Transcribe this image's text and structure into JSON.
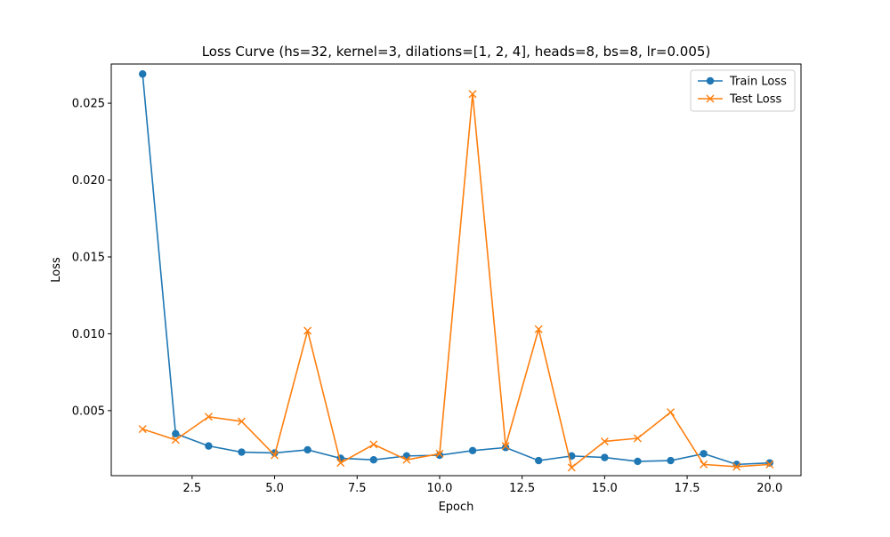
{
  "chart_data": {
    "type": "line",
    "title": "Loss Curve (hs=32, kernel=3, dilations=[1, 2, 4], heads=8, bs=8, lr=0.005)",
    "xlabel": "Epoch",
    "ylabel": "Loss",
    "xlim": [
      0.05,
      20.95
    ],
    "ylim": [
      0.00077,
      0.02755
    ],
    "x_ticks": [
      2.5,
      5.0,
      7.5,
      10.0,
      12.5,
      15.0,
      17.5,
      20.0
    ],
    "x_tick_labels": [
      "2.5",
      "5.0",
      "7.5",
      "10.0",
      "12.5",
      "15.0",
      "17.5",
      "20.0"
    ],
    "y_ticks": [
      0.005,
      0.01,
      0.015,
      0.02,
      0.025
    ],
    "y_tick_labels": [
      "0.005",
      "0.010",
      "0.015",
      "0.020",
      "0.025"
    ],
    "grid": false,
    "legend_position": "top-right",
    "x": [
      1,
      2,
      3,
      4,
      5,
      6,
      7,
      8,
      9,
      10,
      11,
      12,
      13,
      14,
      15,
      16,
      17,
      18,
      19,
      20
    ],
    "series": [
      {
        "name": "Train Loss",
        "color": "#1f77b4",
        "marker": "circle",
        "values": [
          0.0269,
          0.0035,
          0.0027,
          0.0023,
          0.00225,
          0.00245,
          0.0019,
          0.0018,
          0.00205,
          0.0021,
          0.0024,
          0.0026,
          0.00175,
          0.00205,
          0.00195,
          0.0017,
          0.00175,
          0.0022,
          0.0015,
          0.0016
        ]
      },
      {
        "name": "Test Loss",
        "color": "#ff7f0e",
        "marker": "x",
        "values": [
          0.0038,
          0.0031,
          0.0046,
          0.0043,
          0.0021,
          0.0102,
          0.0016,
          0.0028,
          0.0018,
          0.0022,
          0.0256,
          0.0027,
          0.0103,
          0.0013,
          0.003,
          0.0032,
          0.0049,
          0.0015,
          0.00135,
          0.0015
        ]
      }
    ]
  }
}
